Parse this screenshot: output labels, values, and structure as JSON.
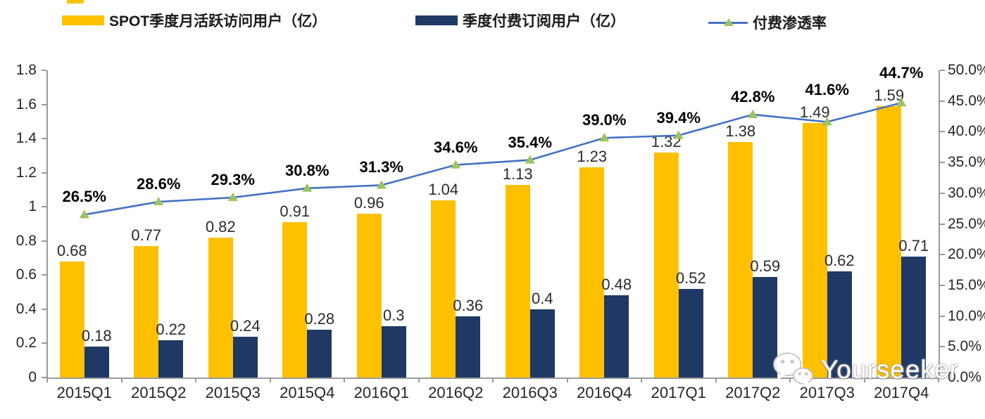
{
  "watermark": {
    "text": "Yourseeker",
    "icon": "wechat-icon"
  },
  "chart_data": {
    "type": "bar+line combo",
    "title": "",
    "legend_position": "top",
    "grid": false,
    "categories": [
      "2015Q1",
      "2015Q2",
      "2015Q3",
      "2015Q4",
      "2016Q1",
      "2016Q2",
      "2016Q3",
      "2016Q4",
      "2017Q1",
      "2017Q2",
      "2017Q3",
      "2017Q4"
    ],
    "series": [
      {
        "name": "SPOT季度月活跃访问用户（亿）",
        "type": "bar",
        "axis": "left",
        "color": "#FFC000",
        "values": [
          0.68,
          0.77,
          0.82,
          0.91,
          0.96,
          1.04,
          1.13,
          1.23,
          1.32,
          1.38,
          1.49,
          1.59
        ],
        "labels": [
          "0.68",
          "0.77",
          "0.82",
          "0.91",
          "0.96",
          "1.04",
          "1.13",
          "1.23",
          "1.32",
          "1.38",
          "1.49",
          "1.59"
        ]
      },
      {
        "name": "季度付费订阅用户（亿）",
        "type": "bar",
        "axis": "left",
        "color": "#1F3864",
        "values": [
          0.18,
          0.22,
          0.24,
          0.28,
          0.3,
          0.36,
          0.4,
          0.48,
          0.52,
          0.59,
          0.62,
          0.71
        ],
        "labels": [
          "0.18",
          "0.22",
          "0.24",
          "0.28",
          "0.3",
          "0.36",
          "0.4",
          "0.48",
          "0.52",
          "0.59",
          "0.62",
          "0.71"
        ]
      },
      {
        "name": "付费渗透率",
        "type": "line",
        "axis": "right",
        "color": "#4472C4",
        "marker": "triangle",
        "marker_color": "#9DC35E",
        "values": [
          26.5,
          28.6,
          29.3,
          30.8,
          31.3,
          34.6,
          35.4,
          39.0,
          39.4,
          42.8,
          41.6,
          44.7
        ],
        "labels": [
          "26.5%",
          "28.6%",
          "29.3%",
          "30.8%",
          "31.3%",
          "34.6%",
          "35.4%",
          "39.0%",
          "39.4%",
          "42.8%",
          "41.6%",
          "44.7%"
        ]
      }
    ],
    "left_axis": {
      "min": 0,
      "max": 1.8,
      "tick_step": 0.2,
      "tick_labels": [
        "0",
        "0.2",
        "0.4",
        "0.6",
        "0.8",
        "1",
        "1.2",
        "1.4",
        "1.6",
        "1.8"
      ]
    },
    "right_axis": {
      "min": 0,
      "max": 50,
      "tick_step": 5,
      "tick_labels": [
        "0.0%",
        "5.0%",
        "10.0%",
        "15.0%",
        "20.0%",
        "25.0%",
        "30.0%",
        "35.0%",
        "40.0%",
        "45.0%",
        "50.0%"
      ]
    }
  }
}
